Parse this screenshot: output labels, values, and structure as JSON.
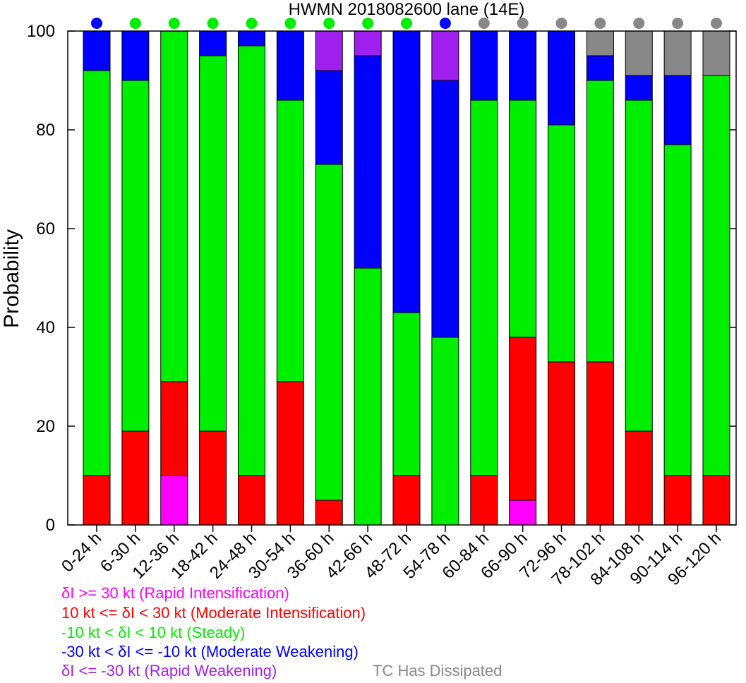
{
  "chart_data": {
    "type": "bar",
    "stacked": true,
    "title": "HWMN 2018082600 lane (14E)",
    "xlabel": "",
    "ylabel": "Probability",
    "ylim": [
      0,
      100
    ],
    "yticks": [
      0,
      20,
      40,
      60,
      80,
      100
    ],
    "grid": false,
    "categories": [
      "0-24 h",
      "6-30 h",
      "12-36 h",
      "18-42 h",
      "24-48 h",
      "30-54 h",
      "36-60 h",
      "42-66 h",
      "48-72 h",
      "54-78 h",
      "60-84 h",
      "66-90 h",
      "72-96 h",
      "78-102 h",
      "84-108 h",
      "90-114 h",
      "96-120 h"
    ],
    "series": [
      {
        "key": "ri",
        "color": "#ff00ff",
        "values": [
          0,
          0,
          10,
          0,
          0,
          0,
          0,
          0,
          0,
          0,
          0,
          5,
          0,
          0,
          0,
          0,
          0
        ]
      },
      {
        "key": "mi",
        "color": "#ff0000",
        "values": [
          10,
          19,
          19,
          19,
          10,
          29,
          5,
          0,
          10,
          0,
          10,
          33,
          33,
          33,
          19,
          10,
          10
        ]
      },
      {
        "key": "st",
        "color": "#00ee00",
        "values": [
          82,
          71,
          71,
          76,
          87,
          57,
          68,
          52,
          33,
          38,
          76,
          48,
          48,
          57,
          67,
          67,
          81
        ]
      },
      {
        "key": "mw",
        "color": "#0000ff",
        "values": [
          8,
          10,
          0,
          5,
          3,
          14,
          19,
          43,
          57,
          52,
          14,
          14,
          19,
          5,
          5,
          14,
          0
        ]
      },
      {
        "key": "rw",
        "color": "#a020f0",
        "values": [
          0,
          0,
          0,
          0,
          0,
          0,
          8,
          5,
          0,
          10,
          0,
          0,
          0,
          0,
          0,
          0,
          0
        ]
      },
      {
        "key": "dis",
        "color": "#888888",
        "values": [
          0,
          0,
          0,
          0,
          0,
          0,
          0,
          0,
          0,
          0,
          0,
          0,
          0,
          5,
          9,
          9,
          9
        ]
      }
    ],
    "top_markers": [
      "#0000ff",
      "#00ee00",
      "#00ee00",
      "#00ee00",
      "#00ee00",
      "#00ee00",
      "#00ee00",
      "#00ee00",
      "#00ee00",
      "#0000ff",
      "#888888",
      "#888888",
      "#888888",
      "#888888",
      "#888888",
      "#888888",
      "#888888"
    ]
  },
  "legend": {
    "ri": {
      "label": "δI >= 30 kt (Rapid Intensification)",
      "color": "#ff00ff"
    },
    "mi": {
      "label": "10 kt <= δI < 30 kt (Moderate Intensification)",
      "color": "#ff0000"
    },
    "st": {
      "label": "-10 kt < δI < 10 kt (Steady)",
      "color": "#00ee00"
    },
    "mw": {
      "label": "-30 kt < δI <= -10 kt (Moderate Weakening)",
      "color": "#0000ff"
    },
    "rw": {
      "label": "δI <= -30 kt (Rapid Weakening)",
      "color": "#a020f0"
    },
    "dis": {
      "label": "TC Has Dissipated",
      "color": "#888888"
    }
  }
}
